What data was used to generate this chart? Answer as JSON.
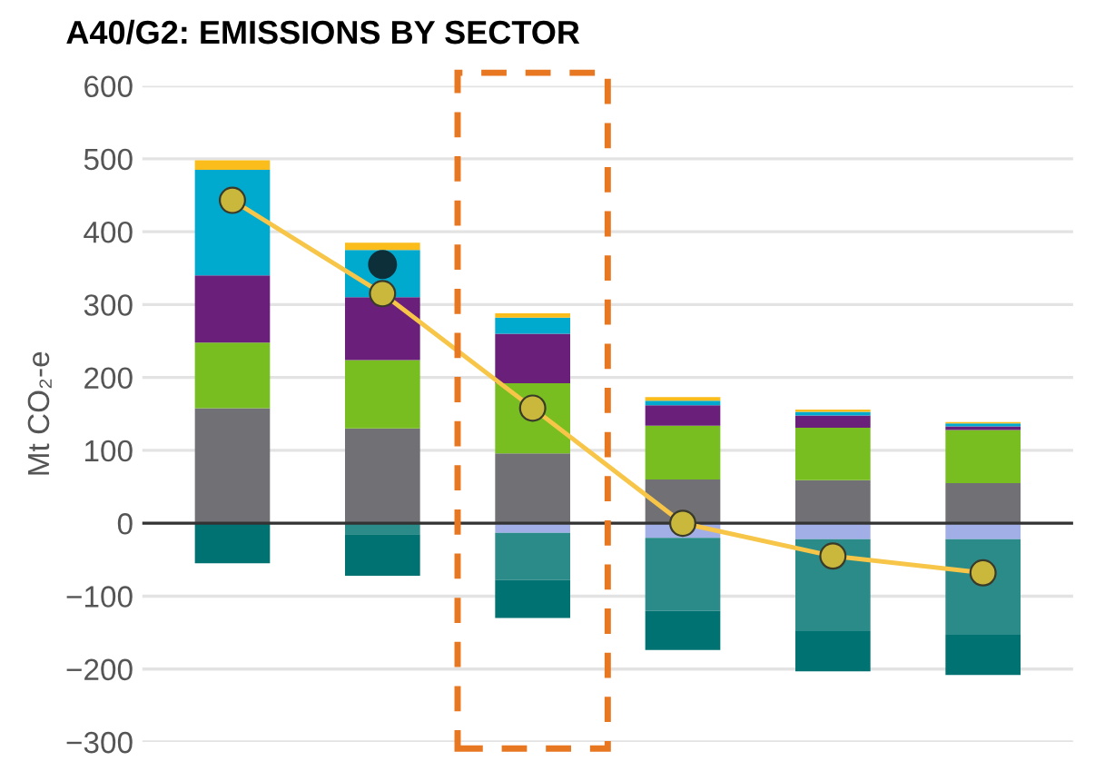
{
  "chart_data": {
    "type": "bar",
    "title": "A40/G2: EMISSIONS BY SECTOR",
    "ylabel": "Mt CO₂-e",
    "stacked": true,
    "categories": [
      null,
      null,
      null,
      null,
      null,
      null
    ],
    "series": [
      {
        "color": "#717074",
        "values": [
          158,
          130,
          96,
          60,
          59,
          55
        ]
      },
      {
        "color": "#78be20",
        "values": [
          90,
          94,
          96,
          74,
          72,
          73
        ]
      },
      {
        "color": "#6a1f7a",
        "values": [
          92,
          86,
          68,
          28,
          17,
          5
        ]
      },
      {
        "color": "#00a9ce",
        "values": [
          145,
          65,
          22,
          6,
          5,
          4
        ]
      },
      {
        "color": "#fbbd1c",
        "values": [
          13,
          10,
          6,
          5,
          3,
          2
        ]
      },
      {
        "color": "#a2aee6",
        "values": [
          null,
          null,
          -13,
          -20,
          -22,
          -22
        ]
      },
      {
        "color": "#2a8b89",
        "values": [
          null,
          -15,
          -65,
          -100,
          -126,
          -131
        ]
      },
      {
        "color": "#007272",
        "values": [
          -55,
          -57,
          -52,
          -54,
          -55,
          -55
        ]
      },
      {
        "type": "line",
        "color": "#f7c548",
        "values": [
          443,
          315,
          158,
          0,
          -45,
          -68
        ],
        "marker": "circle"
      },
      {
        "type": "scatter",
        "color": "#0d2f3a",
        "values": [
          null,
          355,
          null,
          null,
          null,
          null
        ],
        "marker": "circle"
      }
    ],
    "ylim": [
      -300,
      600
    ],
    "yticks": [
      {
        "value": -300,
        "label": "−300"
      },
      {
        "value": -200,
        "label": "−200"
      },
      {
        "value": -100,
        "label": "−100"
      },
      0,
      100,
      200,
      300,
      400,
      500,
      600
    ],
    "grid": "y",
    "legend": false,
    "ref_lines": [
      {
        "axis": "y",
        "value": 0,
        "color": "#333333"
      }
    ]
  }
}
